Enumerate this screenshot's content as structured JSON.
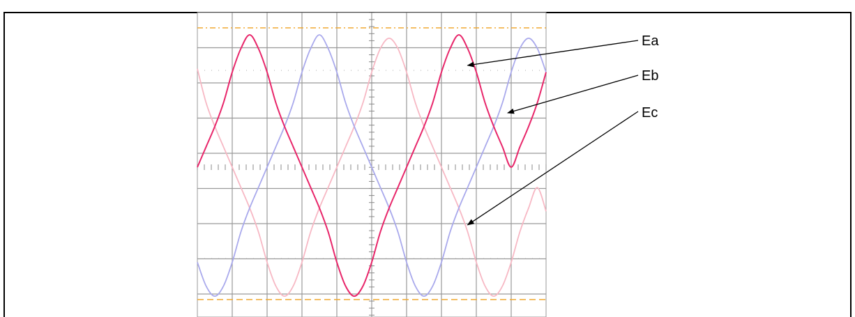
{
  "chart_data": {
    "type": "line",
    "title": "",
    "xlabel": "",
    "ylabel": "",
    "xlim": [
      0,
      10
    ],
    "ylim": [
      -4,
      4
    ],
    "grid": true,
    "legend": "annotations-right",
    "reference_lines": {
      "upper_y": 3.96,
      "lower_y": -3.81,
      "color": "#f0a830"
    },
    "series": [
      {
        "name": "Ea",
        "color": "#f7b8c4",
        "x": [
          0,
          0.25,
          0.5,
          0.75,
          1,
          1.25,
          1.5,
          1.75,
          2,
          2.25,
          2.5,
          2.75,
          3,
          3.25,
          3.5,
          3.75,
          4,
          4.25,
          4.5,
          4.75,
          5,
          5.25,
          5.5,
          5.75,
          6,
          6.25,
          6.5,
          6.75,
          7,
          7.25,
          7.5,
          7.75,
          8,
          8.25,
          8.5,
          8.75,
          9,
          9.25,
          9.5,
          9.75,
          10
        ],
        "y": [
          2.9,
          1.9,
          1.2,
          0.6,
          0,
          -0.6,
          -1.2,
          -1.9,
          -2.8,
          -3.5,
          -3.8,
          -3.5,
          -2.8,
          -1.9,
          -1.2,
          -0.6,
          0,
          0.6,
          1.2,
          1.9,
          2.8,
          3.5,
          3.8,
          3.5,
          2.8,
          1.9,
          1.2,
          0.6,
          0,
          -0.6,
          -1.2,
          -1.9,
          -2.8,
          -3.5,
          -3.8,
          -3.5,
          -2.8,
          -1.9,
          -1.2,
          -0.6,
          -1.3
        ]
      },
      {
        "name": "Eb",
        "color": "#e8266a",
        "x": [
          0,
          0.25,
          0.5,
          0.75,
          1,
          1.25,
          1.5,
          1.75,
          2,
          2.25,
          2.5,
          2.75,
          3,
          3.25,
          3.5,
          3.75,
          4,
          4.25,
          4.5,
          4.75,
          5,
          5.25,
          5.5,
          5.75,
          6,
          6.25,
          6.5,
          6.75,
          7,
          7.25,
          7.5,
          7.75,
          8,
          8.25,
          8.5,
          8.75,
          9,
          9.25,
          9.5,
          9.75,
          10
        ],
        "y": [
          0,
          0.6,
          1.2,
          1.9,
          2.8,
          3.5,
          3.9,
          3.5,
          2.8,
          1.9,
          1.2,
          0.6,
          0,
          -0.6,
          -1.2,
          -1.9,
          -2.8,
          -3.5,
          -3.8,
          -3.5,
          -2.8,
          -1.9,
          -1.2,
          -0.6,
          0,
          0.6,
          1.2,
          1.9,
          2.8,
          3.5,
          3.9,
          3.5,
          2.8,
          1.9,
          1.2,
          0.6,
          0,
          0.6,
          1.2,
          1.9,
          2.8
        ]
      },
      {
        "name": "Ec",
        "color": "#a9a9ec",
        "x": [
          0,
          0.25,
          0.5,
          0.75,
          1,
          1.25,
          1.5,
          1.75,
          2,
          2.25,
          2.5,
          2.75,
          3,
          3.25,
          3.5,
          3.75,
          4,
          4.25,
          4.5,
          4.75,
          5,
          5.25,
          5.5,
          5.75,
          6,
          6.25,
          6.5,
          6.75,
          7,
          7.25,
          7.5,
          7.75,
          8,
          8.25,
          8.5,
          8.75,
          9,
          9.25,
          9.5,
          9.75,
          10
        ],
        "y": [
          -2.8,
          -3.5,
          -3.8,
          -3.5,
          -2.8,
          -1.9,
          -1.2,
          -0.6,
          0,
          0.6,
          1.2,
          1.9,
          2.8,
          3.5,
          3.9,
          3.5,
          2.8,
          1.9,
          1.2,
          0.6,
          0,
          -0.6,
          -1.2,
          -1.9,
          -2.8,
          -3.5,
          -3.8,
          -3.5,
          -2.8,
          -1.9,
          -1.2,
          -0.6,
          0,
          0.6,
          1.2,
          1.9,
          2.8,
          3.5,
          3.8,
          3.5,
          2.8
        ]
      }
    ],
    "annotations": [
      {
        "text": "Ea",
        "series": "Ea",
        "target": [
          7.75,
          3.0
        ]
      },
      {
        "text": "Eb",
        "series": "Eb",
        "target": [
          8.9,
          1.6
        ]
      },
      {
        "text": "Ec",
        "series": "Ec",
        "target": [
          7.75,
          -1.7
        ]
      }
    ]
  }
}
